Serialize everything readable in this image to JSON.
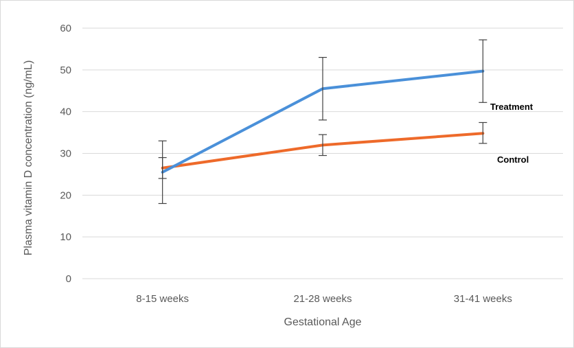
{
  "chart_data": {
    "type": "line",
    "categories": [
      "8-15 weeks",
      "21-28 weeks",
      "31-41 weeks"
    ],
    "series": [
      {
        "name": "Treatment",
        "color": "#4a90d9",
        "values": [
          25.5,
          45.5,
          49.7
        ],
        "error_low": [
          18.0,
          38.0,
          42.2
        ],
        "error_high": [
          33.0,
          53.0,
          57.2
        ]
      },
      {
        "name": "Control",
        "color": "#ee6a2a",
        "values": [
          26.5,
          32.0,
          34.8
        ],
        "error_low": [
          24.0,
          29.5,
          32.4
        ],
        "error_high": [
          29.0,
          34.5,
          37.4
        ]
      }
    ],
    "xlabel": "Gestational Age",
    "ylabel": "Plasma vitamin D concentration (ng/mL)",
    "ylim": [
      0,
      60
    ],
    "yticks": [
      0,
      10,
      20,
      30,
      40,
      50,
      60
    ],
    "grid": true,
    "legend": "inline labels at right end of lines"
  }
}
